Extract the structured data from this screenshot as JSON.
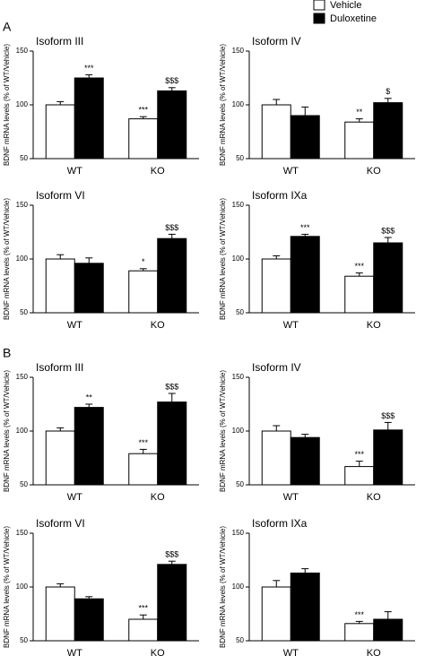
{
  "chart_data": [
    {
      "type": "bar",
      "panel": "A",
      "title": "Isoform III",
      "ylabel": "BDNF mRNA levels (% of WT/Vehicle)",
      "categories": [
        "WT",
        "KO"
      ],
      "ylim": [
        50,
        150
      ],
      "yticks": [
        50,
        100,
        150
      ],
      "series": [
        {
          "name": "Vehicle",
          "color": "#ffffff",
          "values": [
            100,
            87
          ],
          "errors": [
            3,
            2
          ],
          "annotations": [
            null,
            "***"
          ]
        },
        {
          "name": "Duloxetine",
          "color": "#000000",
          "values": [
            125,
            113
          ],
          "errors": [
            3,
            3
          ],
          "annotations": [
            "***",
            "$$$"
          ]
        }
      ]
    },
    {
      "type": "bar",
      "title": "Isoform IV",
      "ylabel": "BDNF mRNA levels (% of WT/Vehicle)",
      "categories": [
        "WT",
        "KO"
      ],
      "ylim": [
        50,
        150
      ],
      "yticks": [
        50,
        100,
        150
      ],
      "series": [
        {
          "name": "Vehicle",
          "color": "#ffffff",
          "values": [
            100,
            84
          ],
          "errors": [
            5,
            3
          ],
          "annotations": [
            null,
            "**"
          ]
        },
        {
          "name": "Duloxetine",
          "color": "#000000",
          "values": [
            90,
            102
          ],
          "errors": [
            8,
            4
          ],
          "annotations": [
            null,
            "$"
          ]
        }
      ]
    },
    {
      "type": "bar",
      "title": "Isoform VI",
      "ylabel": "BDNF mRNA levels (% of WT/Vehicle)",
      "categories": [
        "WT",
        "KO"
      ],
      "ylim": [
        50,
        150
      ],
      "yticks": [
        50,
        100,
        150
      ],
      "series": [
        {
          "name": "Vehicle",
          "color": "#ffffff",
          "values": [
            100,
            89
          ],
          "errors": [
            4,
            2
          ],
          "annotations": [
            null,
            "*"
          ]
        },
        {
          "name": "Duloxetine",
          "color": "#000000",
          "values": [
            96,
            119
          ],
          "errors": [
            5,
            4
          ],
          "annotations": [
            null,
            "$$$"
          ]
        }
      ]
    },
    {
      "type": "bar",
      "title": "Isoform IXa",
      "ylabel": "BDNF mRNA levels (% of WT/Vehicle)",
      "categories": [
        "WT",
        "KO"
      ],
      "ylim": [
        50,
        150
      ],
      "yticks": [
        50,
        100,
        150
      ],
      "series": [
        {
          "name": "Vehicle",
          "color": "#ffffff",
          "values": [
            100,
            84
          ],
          "errors": [
            3,
            3
          ],
          "annotations": [
            null,
            "***"
          ]
        },
        {
          "name": "Duloxetine",
          "color": "#000000",
          "values": [
            121,
            115
          ],
          "errors": [
            2,
            5
          ],
          "annotations": [
            "***",
            "$$$"
          ]
        }
      ]
    },
    {
      "type": "bar",
      "panel": "B",
      "title": "Isoform III",
      "ylabel": "BDNF mRNA levels (% of WT/Vehicle)",
      "categories": [
        "WT",
        "KO"
      ],
      "ylim": [
        50,
        150
      ],
      "yticks": [
        50,
        100,
        150
      ],
      "series": [
        {
          "name": "Vehicle",
          "color": "#ffffff",
          "values": [
            100,
            79
          ],
          "errors": [
            3,
            4
          ],
          "annotations": [
            null,
            "***"
          ]
        },
        {
          "name": "Duloxetine",
          "color": "#000000",
          "values": [
            122,
            127
          ],
          "errors": [
            3,
            8
          ],
          "annotations": [
            "**",
            "$$$"
          ]
        }
      ]
    },
    {
      "type": "bar",
      "title": "Isoform IV",
      "ylabel": "BDNF mRNA levels (% of WT/Vehicle)",
      "categories": [
        "WT",
        "KO"
      ],
      "ylim": [
        50,
        150
      ],
      "yticks": [
        50,
        100,
        150
      ],
      "series": [
        {
          "name": "Vehicle",
          "color": "#ffffff",
          "values": [
            100,
            67
          ],
          "errors": [
            5,
            5
          ],
          "annotations": [
            null,
            "***"
          ]
        },
        {
          "name": "Duloxetine",
          "color": "#000000",
          "values": [
            94,
            101
          ],
          "errors": [
            3,
            7
          ],
          "annotations": [
            null,
            "$$$"
          ]
        }
      ]
    },
    {
      "type": "bar",
      "title": "Isoform VI",
      "ylabel": "BDNF mRNA levels (% of WT/Vehicle)",
      "categories": [
        "WT",
        "KO"
      ],
      "ylim": [
        50,
        150
      ],
      "yticks": [
        50,
        100,
        150
      ],
      "series": [
        {
          "name": "Vehicle",
          "color": "#ffffff",
          "values": [
            100,
            70
          ],
          "errors": [
            3,
            4
          ],
          "annotations": [
            null,
            "***"
          ]
        },
        {
          "name": "Duloxetine",
          "color": "#000000",
          "values": [
            89,
            121
          ],
          "errors": [
            2,
            3
          ],
          "annotations": [
            null,
            "$$$"
          ]
        }
      ]
    },
    {
      "type": "bar",
      "title": "Isoform IXa",
      "ylabel": "BDNF mRNA levels (% of WT/Vehicle)",
      "categories": [
        "WT",
        "KO"
      ],
      "ylim": [
        50,
        150
      ],
      "yticks": [
        50,
        100,
        150
      ],
      "series": [
        {
          "name": "Vehicle",
          "color": "#ffffff",
          "values": [
            100,
            66
          ],
          "errors": [
            6,
            2
          ],
          "annotations": [
            null,
            "***"
          ]
        },
        {
          "name": "Duloxetine",
          "color": "#000000",
          "values": [
            113,
            70
          ],
          "errors": [
            4,
            7
          ],
          "annotations": [
            null,
            null
          ]
        }
      ]
    }
  ]
}
